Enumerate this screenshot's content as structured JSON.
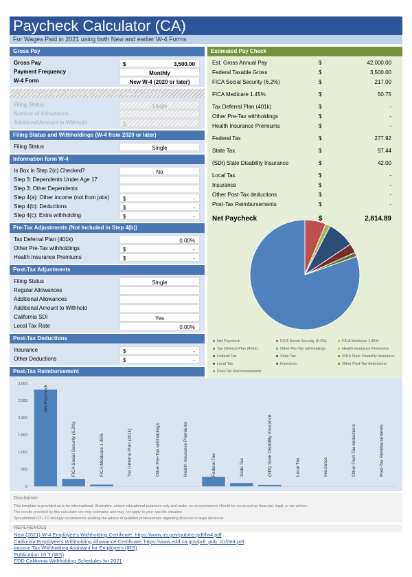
{
  "title": "Paycheck Calculator (CA)",
  "subtitle": "For Wages Paid in 2021 using both New and earlier W-4 Forms",
  "gross_pay": {
    "header": "Gross Pay",
    "rows": [
      {
        "label": "Gross Pay",
        "cur": "$",
        "value": "3,500.00"
      },
      {
        "label": "Payment Frequency",
        "value": "Monthly"
      },
      {
        "label": "W-4 Form",
        "value": "New W-4 (2020 or later)"
      }
    ]
  },
  "filing_old": {
    "header": "Filing Status and Withholdings (W-4 from 2019 or earlier)",
    "rows": [
      {
        "label": "Filing Status",
        "value": "Single"
      },
      {
        "label": "Number of Allowances",
        "value": ""
      },
      {
        "label": "Additional Amount to Withhold",
        "cur": "$",
        "value": "-"
      }
    ]
  },
  "filing_new": {
    "header": "Filing Status and Withholdings (W-4 from 2020 or later)",
    "rows": [
      {
        "label": "Filing Status",
        "value": "Single"
      }
    ]
  },
  "w4_info": {
    "header": "Information form W-4",
    "rows": [
      {
        "label": "Is Box in Step 2(c) Checked?",
        "value": "No"
      },
      {
        "label": "Step 3: Dependents Under Age 17",
        "value": ""
      },
      {
        "label": "Step 3: Other Dependents",
        "value": ""
      },
      {
        "label": "Step 4(a): Other income (not from jobs)",
        "cur": "$",
        "value": "-"
      },
      {
        "label": "Step 4(b): Deductions",
        "cur": "$",
        "value": "-"
      },
      {
        "label": "Step 4(c): Extra withholding",
        "cur": "$",
        "value": "-"
      }
    ]
  },
  "pretax": {
    "header": "Pre-Tax Adjustments (Not Included in Step 4(b))",
    "rows": [
      {
        "label": "Tax Deferral Plan (401k)",
        "value": "0.00%"
      },
      {
        "label": "Other Pre-Tax withholdings",
        "cur": "$",
        "value": "-"
      },
      {
        "label": "Health Insurance Premiums",
        "cur": "$",
        "value": "-"
      }
    ]
  },
  "posttax_adj": {
    "header": "Post-Tax Adjustments",
    "rows": [
      {
        "label": "Filing Status",
        "value": "Single"
      },
      {
        "label": "Regular Allowances",
        "value": ""
      },
      {
        "label": "Additional Allowances",
        "value": ""
      },
      {
        "label": "Additional Amount to Withhold",
        "value": ""
      },
      {
        "label": "California SDI",
        "value": "Yes"
      },
      {
        "label": "Local Tax Rate",
        "value": "0.00%"
      }
    ]
  },
  "posttax_ded": {
    "header": "Post-Tax Deductions",
    "rows": [
      {
        "label": "Insurance",
        "cur": "$",
        "value": "-"
      },
      {
        "label": "Other Deductions",
        "cur": "$",
        "value": "-"
      }
    ]
  },
  "posttax_reimb": {
    "header": "Post-Tax Reimbursement",
    "rows": [
      {
        "label": "Post-Tax Reimbursements",
        "cur": "$",
        "value": "-"
      }
    ]
  },
  "estimated": {
    "header": "Estimated Pay Check",
    "rows": [
      {
        "label": "Est. Gross Annual Pay",
        "cur": "$",
        "value": "42,000.00"
      },
      {
        "label": "Federal Taxable Gross",
        "cur": "$",
        "value": "3,500.00"
      },
      {
        "label": "FICA Social Security (6.2%)",
        "cur": "$",
        "value": "217.00"
      },
      {
        "label": "FICA Medicare 1.45%",
        "cur": "$",
        "value": "50.75"
      },
      {
        "label": "Tax Deferral Plan (401k)",
        "cur": "$",
        "value": "-"
      },
      {
        "label": "Other Pre-Tax withholdings",
        "cur": "$",
        "value": "-"
      },
      {
        "label": "Health Insurance Premiums",
        "cur": "$",
        "value": "-"
      },
      {
        "label": "Federal Tax",
        "cur": "$",
        "value": "277.92"
      },
      {
        "label": "State Tax",
        "cur": "$",
        "value": "97.44"
      },
      {
        "label": "(SDI) State Disability Insurance",
        "cur": "$",
        "value": "42.00"
      },
      {
        "label": "Local Tax",
        "cur": "$",
        "value": "-"
      },
      {
        "label": "Insurance",
        "cur": "$",
        "value": "-"
      },
      {
        "label": "Other Post-Tax deductions",
        "cur": "$",
        "value": "-"
      },
      {
        "label": "Post-Tax Reimbursements",
        "cur": "$",
        "value": "-"
      }
    ],
    "net_label": "Net Paycheck",
    "net_cur": "$",
    "net_value": "2,814.89"
  },
  "colors": {
    "title_bg": "#2e5597",
    "section_blue": "#4b76b4",
    "section_green": "#76923c",
    "panel_blue": "#dbe5f1",
    "panel_green": "#e6efd5"
  },
  "chart_data": [
    {
      "type": "pie",
      "labels": [
        "Net Paycheck",
        "FICA Social Security (6.2%)",
        "FICA Medicare 1.45%",
        "Tax Deferral Plan (401k)",
        "Other Pre-Tax withholdings",
        "Health Insurance Premiums",
        "Federal Tax",
        "State Tax",
        "(SDI) State Disability Insurance",
        "Local Tax",
        "Insurance",
        "Other Post-Tax deductions",
        "Post-Tax Reimbursements"
      ],
      "values": [
        2814.89,
        217.0,
        50.75,
        0,
        0,
        0,
        277.92,
        97.44,
        42.0,
        0,
        0,
        0,
        0
      ],
      "colors": [
        "#4f81bd",
        "#c0504d",
        "#9bbb59",
        "#8064a2",
        "#4bacc6",
        "#f79646",
        "#2c4d75",
        "#772c2a",
        "#5f7530",
        "#4d3b62",
        "#276a7c",
        "#b65708",
        "#729aca"
      ],
      "legend_position": "bottom"
    },
    {
      "type": "bar",
      "categories": [
        "Net Paycheck",
        "FICA Social Security (6.2%)",
        "FICA Medicare 1.45%",
        "Tax Deferral Plan (401k)",
        "Other Pre-Tax withholdings",
        "Health Insurance Premiums",
        "Federal Tax",
        "State Tax",
        "(SDI) State Disability Insurance",
        "Local Tax",
        "Insurance",
        "Other Post-Tax deductions",
        "Post-Tax Reimbursements"
      ],
      "values": [
        2814.89,
        217.0,
        50.75,
        0,
        0,
        0,
        277.92,
        97.44,
        42.0,
        0,
        0,
        0,
        0
      ],
      "yticks": [
        "0",
        "500",
        "1,000",
        "1,500",
        "2,000",
        "2,500",
        "3,000"
      ],
      "ylim": [
        0,
        3000
      ],
      "grid": false
    }
  ],
  "disclaimer": {
    "title": "Disclaimer:",
    "lines": [
      "This template is provided as-is for informational, illustrative, or/and educational purposes only and under no circumstances should be construed as financial, legal, or tax advice.",
      "The results provided by this calculator are only estimates and may not apply to your specific situation.",
      "Spreadsheet123 LTD strongly recommends seeking the advice of qualified professionals regarding financial or legal decisions."
    ]
  },
  "references": {
    "title": "REFERENCES",
    "links": [
      "New (2021) W-4 Employee's Withholding Certificate, https://www.irs.gov/pub/irs-pdf/fw4.pdf",
      "California Employee's Withholding Allowance Certificate, https://www.edd.ca.gov/pdf_pub_ctr/de4.pdf",
      "Income Tax Withholding Assistant for Employers (IRS)",
      "Publication 15 T (IRS)",
      "EDD California Withholding Schedules for 2021"
    ]
  }
}
